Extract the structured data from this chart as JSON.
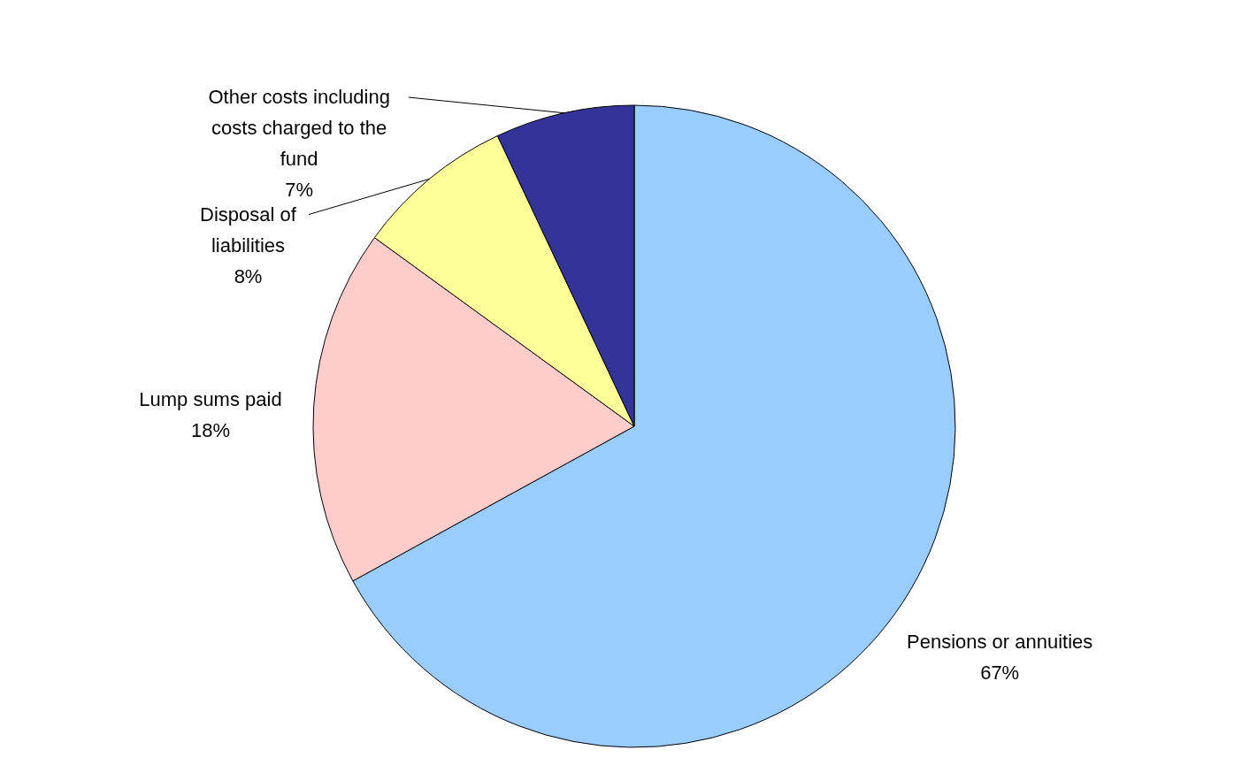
{
  "chart_data": {
    "type": "pie",
    "categories": [
      "Pensions or annuities",
      "Lump sums paid",
      "Disposal of liabilities",
      "Other costs including costs charged to the fund"
    ],
    "values": [
      67,
      18,
      8,
      7
    ],
    "value_labels": [
      "67%",
      "18%",
      "8%",
      "7%"
    ],
    "colors": [
      "#99ccff",
      "#ffcccc",
      "#ffff99",
      "#333399"
    ]
  }
}
